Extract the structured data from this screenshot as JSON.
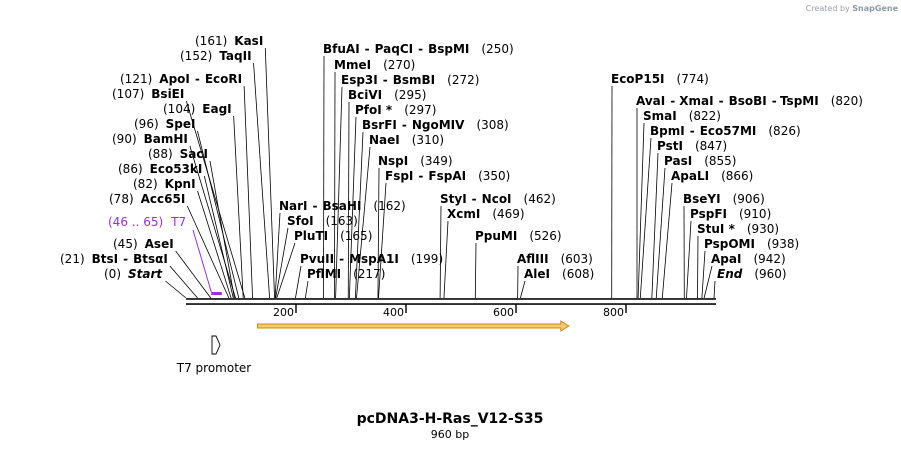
{
  "credit": {
    "prefix": "Created by",
    "brand": "SnapGene"
  },
  "title": "pcDNA3-H-Ras_V12-S35",
  "length_label": "960 bp",
  "length_bp": 960,
  "axis_ticks": [
    "200",
    "400",
    "600",
    "800"
  ],
  "axis_values": [
    200,
    400,
    600,
    800
  ],
  "colors": {
    "primer": "#9b30d9",
    "orf_fill": "#f5c872",
    "orf_stroke": "#c88a16",
    "line": "#000000"
  },
  "ends": [
    {
      "name": "Start",
      "pos": "(0)",
      "bp": 0
    },
    {
      "name": "End",
      "pos": "(960)",
      "bp": 960
    }
  ],
  "sites": [
    {
      "names": [
        "BtsI",
        "BtsαI"
      ],
      "pos": "(21)",
      "bp": 21
    },
    {
      "names": [
        "AseI"
      ],
      "pos": "(45)",
      "bp": 45
    },
    {
      "names": [
        "Acc65I"
      ],
      "pos": "(78)",
      "bp": 78
    },
    {
      "names": [
        "KpnI"
      ],
      "pos": "(82)",
      "bp": 82
    },
    {
      "names": [
        "Eco53kI"
      ],
      "pos": "(86)",
      "bp": 86
    },
    {
      "names": [
        "SacI"
      ],
      "pos": "(88)",
      "bp": 88
    },
    {
      "names": [
        "BamHI"
      ],
      "pos": "(90)",
      "bp": 90
    },
    {
      "names": [
        "SpeI"
      ],
      "pos": "(96)",
      "bp": 96
    },
    {
      "names": [
        "EagI"
      ],
      "pos": "(104)",
      "bp": 104
    },
    {
      "names": [
        "BsiEI"
      ],
      "pos": "(107)",
      "bp": 107
    },
    {
      "names": [
        "ApoI",
        "EcoRI"
      ],
      "pos": "(121)",
      "bp": 121
    },
    {
      "names": [
        "TaqII"
      ],
      "pos": "(152)",
      "bp": 152
    },
    {
      "names": [
        "KasI"
      ],
      "pos": "(161)",
      "bp": 161
    },
    {
      "names": [
        "NarI",
        "BsaHI"
      ],
      "pos": "(162)",
      "bp": 162
    },
    {
      "names": [
        "SfoI"
      ],
      "pos": "(163)",
      "bp": 163
    },
    {
      "names": [
        "PluTI"
      ],
      "pos": "(165)",
      "bp": 165
    },
    {
      "names": [
        "PvuII",
        "MspA1I"
      ],
      "pos": "(199)",
      "bp": 199
    },
    {
      "names": [
        "PflMI"
      ],
      "pos": "(217)",
      "bp": 217
    },
    {
      "names": [
        "BfuAI",
        "PaqCI",
        "BspMI"
      ],
      "pos": "(250)",
      "bp": 250
    },
    {
      "names": [
        "MmeI"
      ],
      "pos": "(270)",
      "bp": 270
    },
    {
      "names": [
        "Esp3I",
        "BsmBI"
      ],
      "pos": "(272)",
      "bp": 272
    },
    {
      "names": [
        "BciVI"
      ],
      "pos": "(295)",
      "bp": 295
    },
    {
      "names": [
        "PfoI *"
      ],
      "pos": "(297)",
      "bp": 297
    },
    {
      "names": [
        "BsrFI",
        "NgoMIV"
      ],
      "pos": "(308)",
      "bp": 308
    },
    {
      "names": [
        "NaeI"
      ],
      "pos": "(310)",
      "bp": 310
    },
    {
      "names": [
        "NspI"
      ],
      "pos": "(349)",
      "bp": 349
    },
    {
      "names": [
        "FspI",
        "FspAI"
      ],
      "pos": "(350)",
      "bp": 350
    },
    {
      "names": [
        "StyI",
        "NcoI"
      ],
      "pos": "(462)",
      "bp": 462
    },
    {
      "names": [
        "XcmI"
      ],
      "pos": "(469)",
      "bp": 469
    },
    {
      "names": [
        "PpuMI"
      ],
      "pos": "(526)",
      "bp": 526
    },
    {
      "names": [
        "AflIII"
      ],
      "pos": "(603)",
      "bp": 603
    },
    {
      "names": [
        "AleI"
      ],
      "pos": "(608)",
      "bp": 608
    },
    {
      "names": [
        "EcoP15I"
      ],
      "pos": "(774)",
      "bp": 774
    },
    {
      "names": [
        "AvaI",
        "XmaI",
        "BsoBI",
        "TspMI"
      ],
      "pos": "(820)",
      "bp": 820
    },
    {
      "names": [
        "SmaI"
      ],
      "pos": "(822)",
      "bp": 822
    },
    {
      "names": [
        "BpmI",
        "Eco57MI"
      ],
      "pos": "(826)",
      "bp": 826
    },
    {
      "names": [
        "PstI"
      ],
      "pos": "(847)",
      "bp": 847
    },
    {
      "names": [
        "PasI"
      ],
      "pos": "(855)",
      "bp": 855
    },
    {
      "names": [
        "ApaLI"
      ],
      "pos": "(866)",
      "bp": 866
    },
    {
      "names": [
        "BseYI"
      ],
      "pos": "(906)",
      "bp": 906
    },
    {
      "names": [
        "PspFI"
      ],
      "pos": "(910)",
      "bp": 910
    },
    {
      "names": [
        "StuI *"
      ],
      "pos": "(930)",
      "bp": 930
    },
    {
      "names": [
        "PspOMI"
      ],
      "pos": "(938)",
      "bp": 938
    },
    {
      "names": [
        "ApaI"
      ],
      "pos": "(942)",
      "bp": 942
    }
  ],
  "primer": {
    "name": "T7",
    "range": "(46 .. 65)",
    "start_bp": 46,
    "end_bp": 65
  },
  "features": [
    {
      "name": "T7 promoter",
      "type": "promoter",
      "start_bp": 46,
      "end_bp": 65
    },
    {
      "name": "",
      "type": "orf",
      "start_bp": 130,
      "end_bp": 696
    }
  ]
}
